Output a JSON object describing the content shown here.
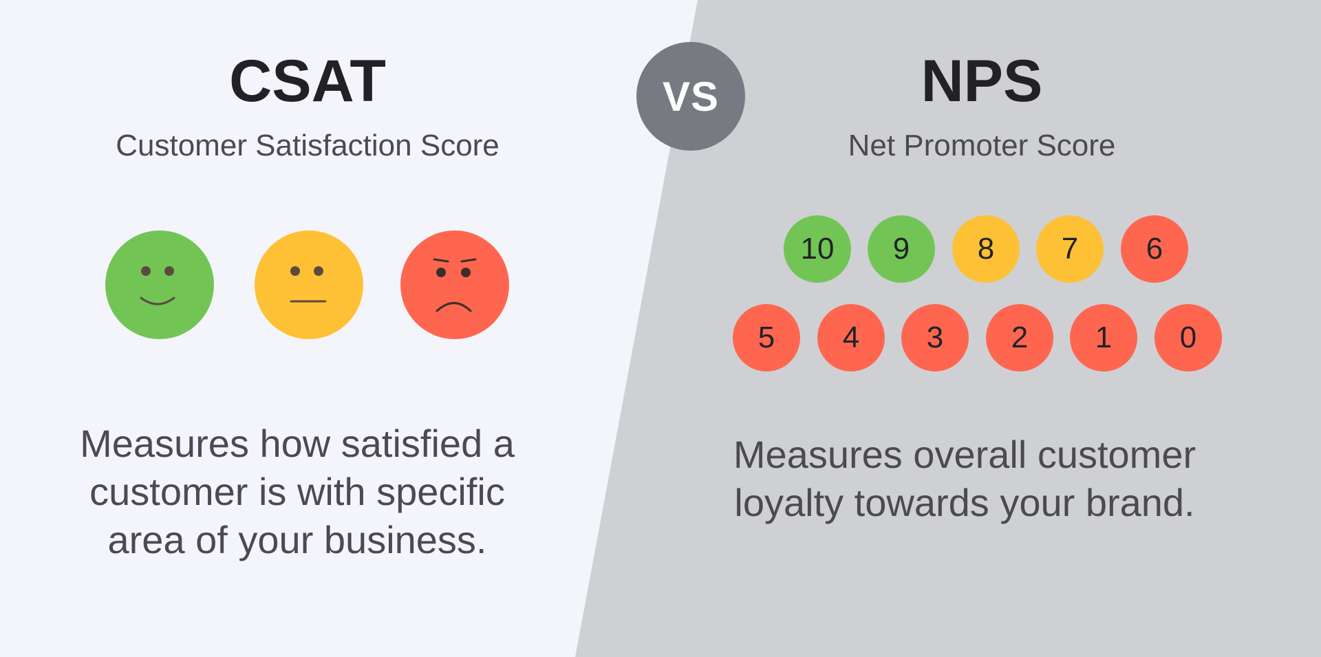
{
  "colors": {
    "left_bg": "#f4f5fa",
    "right_bg": "#cfd0d4",
    "vs_badge": "#787a82",
    "green": "#72c555",
    "yellow": "#fec136",
    "red": "#ff6650"
  },
  "csat": {
    "title": "CSAT",
    "subtitle": "Customer Satisfaction Score",
    "faces": [
      {
        "icon": "happy-face-icon",
        "color": "green"
      },
      {
        "icon": "neutral-face-icon",
        "color": "yellow"
      },
      {
        "icon": "angry-face-icon",
        "color": "red"
      }
    ],
    "description": [
      "Measures how satisfied a",
      "customer is with specific",
      "area of your business."
    ]
  },
  "vs": {
    "label": "VS"
  },
  "nps": {
    "title": "NPS",
    "subtitle": "Net Promoter Score",
    "scores_row1": [
      {
        "label": "10",
        "color": "green"
      },
      {
        "label": "9",
        "color": "green"
      },
      {
        "label": "8",
        "color": "yellow"
      },
      {
        "label": "7",
        "color": "yellow"
      },
      {
        "label": "6",
        "color": "red"
      }
    ],
    "scores_row2": [
      {
        "label": "5",
        "color": "red"
      },
      {
        "label": "4",
        "color": "red"
      },
      {
        "label": "3",
        "color": "red"
      },
      {
        "label": "2",
        "color": "red"
      },
      {
        "label": "1",
        "color": "red"
      },
      {
        "label": "0",
        "color": "red"
      }
    ],
    "description": [
      "Measures overall customer",
      "loyalty towards your brand."
    ]
  }
}
